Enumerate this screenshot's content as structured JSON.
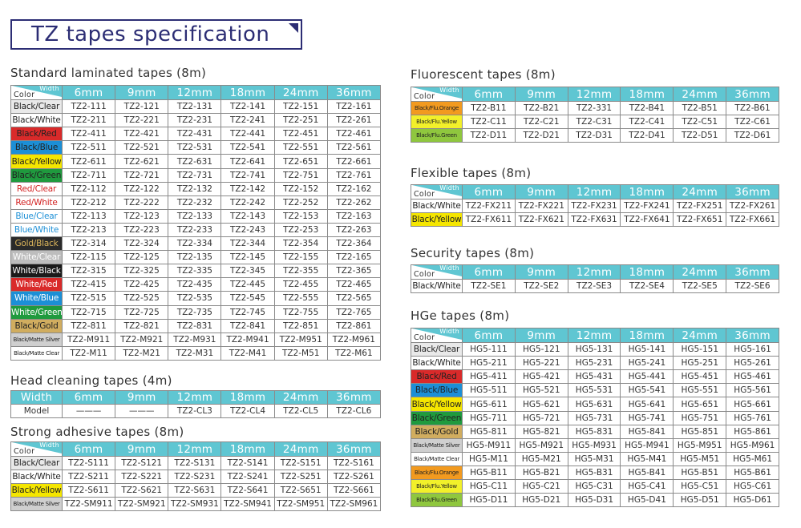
{
  "title": "TZ tapes specification",
  "standard": {
    "title": "Standard laminated tapes (8m)",
    "header_width": "Width",
    "header_color": "Color",
    "widths": [
      "6mm",
      "9mm",
      "12mm",
      "18mm",
      "24mm",
      "36mm"
    ],
    "rows": [
      {
        "color": "Black/Clear",
        "bg": "#e9e9e9",
        "fg": "#222222",
        "codes": [
          "TZ2-111",
          "TZ2-121",
          "TZ2-131",
          "TZ2-141",
          "TZ2-151",
          "TZ2-161"
        ]
      },
      {
        "color": "Black/White",
        "bg": "#ffffff",
        "fg": "#222222",
        "codes": [
          "TZ2-211",
          "TZ2-221",
          "TZ2-231",
          "TZ2-241",
          "TZ2-251",
          "TZ2-261"
        ]
      },
      {
        "color": "Black/Red",
        "bg": "#d92a2a",
        "fg": "#222222",
        "codes": [
          "TZ2-411",
          "TZ2-421",
          "TZ2-431",
          "TZ2-441",
          "TZ2-451",
          "TZ2-461"
        ]
      },
      {
        "color": "Black/Blue",
        "bg": "#1c8fd6",
        "fg": "#222222",
        "codes": [
          "TZ2-511",
          "TZ2-521",
          "TZ2-531",
          "TZ2-541",
          "TZ2-551",
          "TZ2-561"
        ]
      },
      {
        "color": "Black/Yellow",
        "bg": "#f5e600",
        "fg": "#222222",
        "codes": [
          "TZ2-611",
          "TZ2-621",
          "TZ2-631",
          "TZ2-641",
          "TZ2-651",
          "TZ2-661"
        ]
      },
      {
        "color": "Black/Green",
        "bg": "#1f9a3e",
        "fg": "#222222",
        "codes": [
          "TZ2-711",
          "TZ2-721",
          "TZ2-731",
          "TZ2-741",
          "TZ2-751",
          "TZ2-761"
        ]
      },
      {
        "color": "Red/Clear",
        "bg": "#ffffff",
        "fg": "#d22020",
        "codes": [
          "TZ2-112",
          "TZ2-122",
          "TZ2-132",
          "TZ2-142",
          "TZ2-152",
          "TZ2-162"
        ]
      },
      {
        "color": "Red/White",
        "bg": "#ffffff",
        "fg": "#d22020",
        "codes": [
          "TZ2-212",
          "TZ2-222",
          "TZ2-232",
          "TZ2-242",
          "TZ2-252",
          "TZ2-262"
        ]
      },
      {
        "color": "Blue/Clear",
        "bg": "#ffffff",
        "fg": "#1c8fd6",
        "codes": [
          "TZ2-113",
          "TZ2-123",
          "TZ2-133",
          "TZ2-143",
          "TZ2-153",
          "TZ2-163"
        ]
      },
      {
        "color": "Blue/White",
        "bg": "#ffffff",
        "fg": "#1c8fd6",
        "codes": [
          "TZ2-213",
          "TZ2-223",
          "TZ2-233",
          "TZ2-243",
          "TZ2-253",
          "TZ2-263"
        ]
      },
      {
        "color": "Gold/Black",
        "bg": "#2a2a2a",
        "fg": "#d9b35a",
        "codes": [
          "TZ2-314",
          "TZ2-324",
          "TZ2-334",
          "TZ2-344",
          "TZ2-354",
          "TZ2-364"
        ]
      },
      {
        "color": "White/Clear",
        "bg": "#bdbdbd",
        "fg": "#ffffff",
        "codes": [
          "TZ2-115",
          "TZ2-125",
          "TZ2-135",
          "TZ2-145",
          "TZ2-155",
          "TZ2-165"
        ]
      },
      {
        "color": "White/Black",
        "bg": "#1a1a1a",
        "fg": "#ffffff",
        "codes": [
          "TZ2-315",
          "TZ2-325",
          "TZ2-335",
          "TZ2-345",
          "TZ2-355",
          "TZ2-365"
        ]
      },
      {
        "color": "White/Red",
        "bg": "#d92a2a",
        "fg": "#ffffff",
        "codes": [
          "TZ2-415",
          "TZ2-425",
          "TZ2-435",
          "TZ2-445",
          "TZ2-455",
          "TZ2-465"
        ]
      },
      {
        "color": "White/Blue",
        "bg": "#1c8fd6",
        "fg": "#ffffff",
        "codes": [
          "TZ2-515",
          "TZ2-525",
          "TZ2-535",
          "TZ2-545",
          "TZ2-555",
          "TZ2-565"
        ]
      },
      {
        "color": "White/Green",
        "bg": "#1f9a3e",
        "fg": "#ffffff",
        "codes": [
          "TZ2-715",
          "TZ2-725",
          "TZ2-735",
          "TZ2-745",
          "TZ2-755",
          "TZ2-765"
        ]
      },
      {
        "color": "Black/Gold",
        "bg": "#d1ad5f",
        "fg": "#222222",
        "codes": [
          "TZ2-811",
          "TZ2-821",
          "TZ2-831",
          "TZ2-841",
          "TZ2-851",
          "TZ2-861"
        ]
      },
      {
        "color": "Black/Matte Silver",
        "bg": "#cfcfcf",
        "fg": "#222222",
        "small": true,
        "codes": [
          "TZ2-M911",
          "TZ2-M921",
          "TZ2-M931",
          "TZ2-M941",
          "TZ2-M951",
          "TZ2-M961"
        ]
      },
      {
        "color": "Black/Matte Clear",
        "bg": "#ffffff",
        "fg": "#222222",
        "small": true,
        "codes": [
          "TZ2-M11",
          "TZ2-M21",
          "TZ2-M31",
          "TZ2-M41",
          "TZ2-M51",
          "TZ2-M61"
        ]
      }
    ]
  },
  "head_cleaning": {
    "title": "Head cleaning tapes (4m)",
    "header_width": "Width",
    "widths": [
      "6mm",
      "9mm",
      "12mm",
      "18mm",
      "24mm",
      "36mm"
    ],
    "rows": [
      {
        "label": "Model",
        "codes": [
          "———",
          "———",
          "TZ2-CL3",
          "TZ2-CL4",
          "TZ2-CL5",
          "TZ2-CL6"
        ]
      }
    ]
  },
  "strong": {
    "title": "Strong adhesive tapes (8m)",
    "header_width": "Width",
    "header_color": "Color",
    "widths": [
      "6mm",
      "9mm",
      "12mm",
      "18mm",
      "24mm",
      "36mm"
    ],
    "rows": [
      {
        "color": "Black/Clear",
        "bg": "#e9e9e9",
        "fg": "#222222",
        "codes": [
          "TZ2-S111",
          "TZ2-S121",
          "TZ2-S131",
          "TZ2-S141",
          "TZ2-S151",
          "TZ2-S161"
        ]
      },
      {
        "color": "Black/White",
        "bg": "#ffffff",
        "fg": "#222222",
        "codes": [
          "TZ2-S211",
          "TZ2-S221",
          "TZ2-S231",
          "TZ2-S241",
          "TZ2-S251",
          "TZ2-S261"
        ]
      },
      {
        "color": "Black/Yellow",
        "bg": "#f5e600",
        "fg": "#222222",
        "codes": [
          "TZ2-S611",
          "TZ2-S621",
          "TZ2-S631",
          "TZ2-S641",
          "TZ2-S651",
          "TZ2-S661"
        ]
      },
      {
        "color": "Black/Matte Silver",
        "bg": "#cfcfcf",
        "fg": "#222222",
        "small": true,
        "codes": [
          "TZ2-SM911",
          "TZ2-SM921",
          "TZ2-SM931",
          "TZ2-SM941",
          "TZ2-SM951",
          "TZ2-SM961"
        ]
      }
    ]
  },
  "fluorescent": {
    "title": "Fluorescent tapes (8m)",
    "header_width": "Width",
    "header_color": "Color",
    "widths": [
      "6mm",
      "9mm",
      "12mm",
      "18mm",
      "24mm",
      "36mm"
    ],
    "rows": [
      {
        "color": "Black/Flu.Orange",
        "bg": "#f29a1f",
        "fg": "#222222",
        "small": true,
        "codes": [
          "TZ2-B11",
          "TZ2-B21",
          "TZ2-331",
          "TZ2-B41",
          "TZ2-B51",
          "TZ2-B61"
        ]
      },
      {
        "color": "Black/Flu.Yellow",
        "bg": "#f2f02a",
        "fg": "#222222",
        "small": true,
        "codes": [
          "TZ2-C11",
          "TZ2-C21",
          "TZ2-C31",
          "TZ2-C41",
          "TZ2-C51",
          "TZ2-C61"
        ]
      },
      {
        "color": "Black/Flu.Green",
        "bg": "#8fc73e",
        "fg": "#222222",
        "small": true,
        "codes": [
          "TZ2-D11",
          "TZ2-D21",
          "TZ2-D31",
          "TZ2-D41",
          "TZ2-D51",
          "TZ2-D61"
        ]
      }
    ]
  },
  "flexible": {
    "title": "Flexible tapes (8m)",
    "header_width": "Width",
    "header_color": "Color",
    "widths": [
      "6mm",
      "9mm",
      "12mm",
      "18mm",
      "24mm",
      "36mm"
    ],
    "rows": [
      {
        "color": "Black/White",
        "bg": "#ffffff",
        "fg": "#222222",
        "codes": [
          "TZ2-FX211",
          "TZ2-FX221",
          "TZ2-FX231",
          "TZ2-FX241",
          "TZ2-FX251",
          "TZ2-FX261"
        ]
      },
      {
        "color": "Black/Yellow",
        "bg": "#f5e600",
        "fg": "#222222",
        "codes": [
          "TZ2-FX611",
          "TZ2-FX621",
          "TZ2-FX631",
          "TZ2-FX641",
          "TZ2-FX651",
          "TZ2-FX661"
        ]
      }
    ]
  },
  "security": {
    "title": "Security tapes (8m)",
    "header_width": "Width",
    "header_color": "Color",
    "widths": [
      "6mm",
      "9mm",
      "12mm",
      "18mm",
      "24mm",
      "36mm"
    ],
    "rows": [
      {
        "color": "Black/White",
        "bg": "#ffffff",
        "fg": "#222222",
        "codes": [
          "TZ2-SE1",
          "TZ2-SE2",
          "TZ2-SE3",
          "TZ2-SE4",
          "TZ2-SE5",
          "TZ2-SE6"
        ]
      }
    ]
  },
  "hge": {
    "title": "HGe tapes (8m)",
    "header_width": "Width",
    "header_color": "Color",
    "widths": [
      "6mm",
      "9mm",
      "12mm",
      "18mm",
      "24mm",
      "36mm"
    ],
    "rows": [
      {
        "color": "Black/Clear",
        "bg": "#e9e9e9",
        "fg": "#222222",
        "codes": [
          "HG5-111",
          "HG5-121",
          "HG5-131",
          "HG5-141",
          "HG5-151",
          "HG5-161"
        ]
      },
      {
        "color": "Black/White",
        "bg": "#ffffff",
        "fg": "#222222",
        "codes": [
          "HG5-211",
          "HG5-221",
          "HG5-231",
          "HG5-241",
          "HG5-251",
          "HG5-261"
        ]
      },
      {
        "color": "Black/Red",
        "bg": "#d92a2a",
        "fg": "#222222",
        "codes": [
          "HG5-411",
          "HG5-421",
          "HG5-431",
          "HG5-441",
          "HG5-451",
          "HG5-461"
        ]
      },
      {
        "color": "Black/Blue",
        "bg": "#1c8fd6",
        "fg": "#222222",
        "codes": [
          "HG5-511",
          "HG5-521",
          "HG5-531",
          "HG5-541",
          "HG5-551",
          "HG5-561"
        ]
      },
      {
        "color": "Black/Yellow",
        "bg": "#f5e600",
        "fg": "#222222",
        "codes": [
          "HG5-611",
          "HG5-621",
          "HG5-631",
          "HG5-641",
          "HG5-651",
          "HG5-661"
        ]
      },
      {
        "color": "Black/Green",
        "bg": "#1f9a3e",
        "fg": "#222222",
        "codes": [
          "HG5-711",
          "HG5-721",
          "HG5-731",
          "HG5-741",
          "HG5-751",
          "HG5-761"
        ]
      },
      {
        "color": "Black/Gold",
        "bg": "#d1ad5f",
        "fg": "#222222",
        "codes": [
          "HG5-811",
          "HG5-821",
          "HG5-831",
          "HG5-841",
          "HG5-851",
          "HG5-861"
        ]
      },
      {
        "color": "Black/Matte Silver",
        "bg": "#cfcfcf",
        "fg": "#222222",
        "small": true,
        "codes": [
          "HG5-M911",
          "HG5-M921",
          "HG5-M931",
          "HG5-M941",
          "HG5-M951",
          "HG5-M961"
        ]
      },
      {
        "color": "Black/Matte Clear",
        "bg": "#ffffff",
        "fg": "#222222",
        "small": true,
        "codes": [
          "HG5-M11",
          "HG5-M21",
          "HG5-M31",
          "HG5-M41",
          "HG5-M51",
          "HG5-M61"
        ]
      },
      {
        "color": "Black/Flu.Orange",
        "bg": "#f29a1f",
        "fg": "#222222",
        "small": true,
        "codes": [
          "HG5-B11",
          "HG5-B21",
          "HG5-B31",
          "HG5-B41",
          "HG5-B51",
          "HG5-B61"
        ]
      },
      {
        "color": "Black/Flu.Yellow",
        "bg": "#f2f02a",
        "fg": "#222222",
        "small": true,
        "codes": [
          "HG5-C11",
          "HG5-C21",
          "HG5-C31",
          "HG5-C41",
          "HG5-C51",
          "HG5-C61"
        ]
      },
      {
        "color": "Black/Flu.Green",
        "bg": "#8fc73e",
        "fg": "#222222",
        "small": true,
        "codes": [
          "HG5-D11",
          "HG5-D21",
          "HG5-D31",
          "HG5-D41",
          "HG5-D51",
          "HG5-D61"
        ]
      }
    ]
  }
}
